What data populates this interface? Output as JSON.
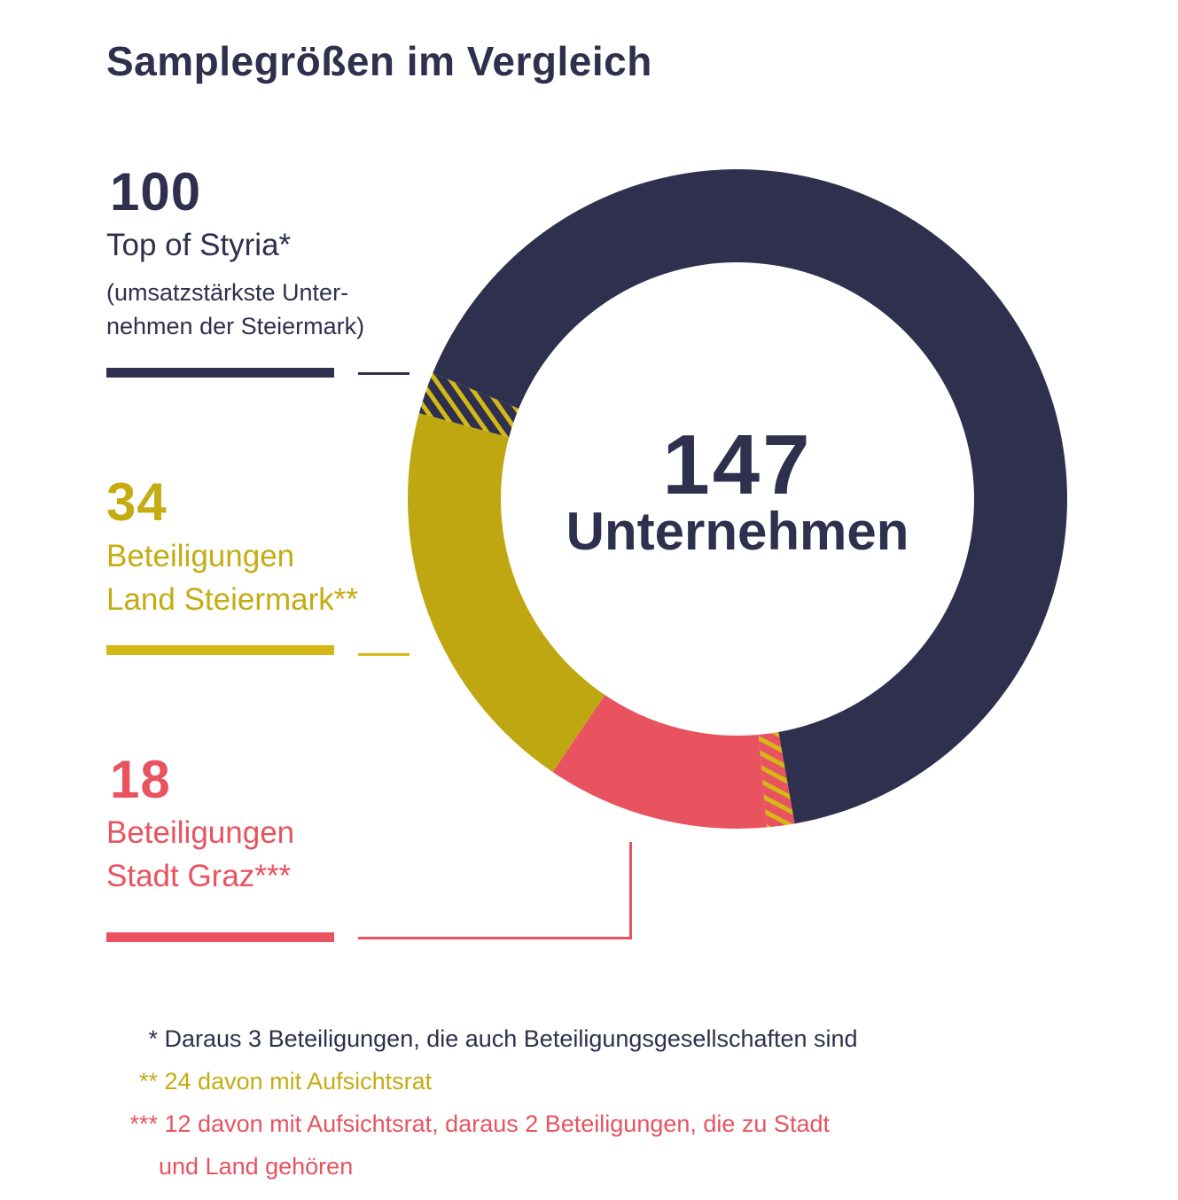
{
  "title": "Samplegrößen im Vergleich",
  "groups": [
    {
      "value": "100",
      "label_line1": "Top of Styria*",
      "sub_line1": "(umsatzstärkste Unter-",
      "sub_line2": "nehmen der Steiermark)",
      "color": "#2e304d"
    },
    {
      "value": "34",
      "label_line1": "Beteiligungen",
      "label_line2": "Land Steiermark**",
      "color": "#c4ac12"
    },
    {
      "value": "18",
      "label_line1": "Beteiligungen",
      "label_line2": "Stadt Graz***",
      "color": "#e8535f"
    }
  ],
  "center": {
    "value": "147",
    "label": "Unternehmen"
  },
  "footnotes": [
    {
      "mark": "*",
      "text": "Daraus 3 Beteiligungen, die auch Beteiligungsgesellschaften sind"
    },
    {
      "mark": "**",
      "text": "24 davon mit Aufsichtsrat"
    },
    {
      "mark": "***",
      "text": "12 davon mit Aufsichtsrat, daraus 2 Beteiligungen, die zu Stadt",
      "text2": "und Land gehören"
    }
  ],
  "chart_data": {
    "type": "pie",
    "title": "Samplegrößen im Vergleich",
    "total": 147,
    "categories": [
      "Top of Styria",
      "Beteiligungen Land Steiermark",
      "Beteiligungen Stadt Graz"
    ],
    "values": [
      100,
      34,
      18
    ],
    "overlaps": [
      {
        "between": [
          "Top of Styria",
          "Beteiligungen Land Steiermark"
        ],
        "count": 3
      },
      {
        "between": [
          "Beteiligungen Stadt Graz",
          "Beteiligungen Land Steiermark"
        ],
        "count": 2
      }
    ],
    "segments": [
      {
        "name": "stadt-land-overlap",
        "count": 2,
        "fill": "#e8535f",
        "hatch": "#d4b916"
      },
      {
        "name": "stadt-graz",
        "count": 16,
        "fill": "#e8535f"
      },
      {
        "name": "land-steiermark",
        "count": 29,
        "fill": "#bfa712"
      },
      {
        "name": "styria-land-overlap",
        "count": 3,
        "fill": "#2e304d",
        "hatch": "#d4b916"
      },
      {
        "name": "top-of-styria",
        "count": 97,
        "fill": "#2e304d"
      }
    ],
    "start_angle_deg": 170
  }
}
